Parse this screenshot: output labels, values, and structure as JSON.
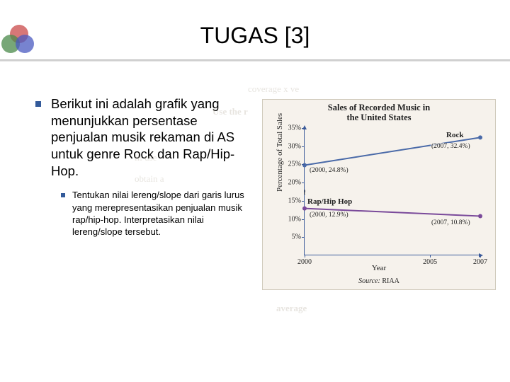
{
  "title": "TUGAS [3]",
  "main_bullet": "Berikut ini adalah grafik yang menunjukkan persentase penjualan musik rekaman di AS untuk genre Rock dan Rap/Hip-Hop.",
  "sub_bullet": "Tentukan nilai lereng/slope dari garis lurus yang merepresentasikan penjualan musik rap/hip-hop. Interpretasikan nilai lereng/slope tersebut.",
  "chart": {
    "type": "line",
    "title_line1": "Sales of Recorded Music in",
    "title_line2": "the United States",
    "y_axis_title": "Percentage of Total Sales",
    "x_axis_title": "Year",
    "source_label": "Source:",
    "source_value": "RIAA",
    "background_color": "#f6f2ec",
    "axis_color": "#3a5a9a",
    "ylim": [
      0,
      35
    ],
    "ytick_step": 5,
    "yticks": [
      "5%",
      "10%",
      "15%",
      "20%",
      "25%",
      "30%",
      "35%"
    ],
    "xlim": [
      2000,
      2007
    ],
    "xticks": [
      2000,
      2005,
      2007
    ],
    "series": [
      {
        "name": "Rock",
        "color": "#4a6aa8",
        "line_width": 2,
        "points": [
          {
            "x": 2000,
            "y": 24.8,
            "label": "(2000, 24.8%)"
          },
          {
            "x": 2007,
            "y": 32.4,
            "label": "(2007, 32.4%)"
          }
        ]
      },
      {
        "name": "Rap/Hip Hop",
        "color": "#7a4a9a",
        "line_width": 2,
        "points": [
          {
            "x": 2000,
            "y": 12.9,
            "label": "(2000, 12.9%)"
          },
          {
            "x": 2007,
            "y": 10.8,
            "label": "(2007, 10.8%)"
          }
        ]
      }
    ],
    "ghost_text": {
      "top": "coverage x ve",
      "line2": "Use the r",
      "mid1": "ill use",
      "mid2": "obtain a",
      "bottom": "average"
    }
  }
}
